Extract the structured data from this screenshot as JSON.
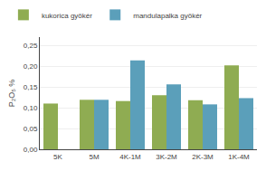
{
  "chart_data": {
    "type": "bar",
    "categories": [
      "5K",
      "5M",
      "4K-1M",
      "3K-2M",
      "2K-3M",
      "1K-4M"
    ],
    "series": [
      {
        "name": "kukorica gyökér",
        "color": "#8fac52",
        "values": [
          0.11,
          0.119,
          0.116,
          0.13,
          0.118,
          0.202
        ]
      },
      {
        "name": "mandulapalka gyökér",
        "color": "#5b9fba",
        "values": [
          null,
          0.119,
          0.214,
          0.156,
          0.108,
          0.123
        ]
      }
    ],
    "ylabel": "P₂O₅ %",
    "ylim": [
      0,
      0.27
    ],
    "yticks": [
      {
        "value": 0.0,
        "label": "0,00"
      },
      {
        "value": 0.05,
        "label": "0,05"
      },
      {
        "value": 0.1,
        "label": "0,10"
      },
      {
        "value": 0.15,
        "label": "0,15"
      },
      {
        "value": 0.2,
        "label": "0,20"
      },
      {
        "value": 0.25,
        "label": "0,25"
      }
    ],
    "grid": true,
    "legend": "upper left"
  }
}
